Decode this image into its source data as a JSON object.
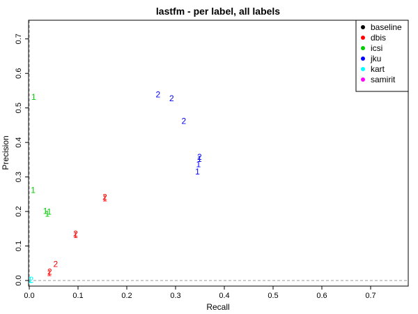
{
  "chart_data": {
    "type": "scatter",
    "title": "lastfm - per label, all labels",
    "xlabel": "Recall",
    "ylabel": "Precision",
    "xlim": [
      0,
      0.75
    ],
    "ylim": [
      0,
      0.75
    ],
    "x_ticks": [
      "0.0",
      "0.1",
      "0.2",
      "0.3",
      "0.4",
      "0.5",
      "0.6",
      "0.7"
    ],
    "y_ticks": [
      "0.0",
      "0.1",
      "0.2",
      "0.3",
      "0.4",
      "0.5",
      "0.6",
      "0.7"
    ],
    "legend": {
      "placement": "top-right"
    },
    "series": [
      {
        "name": "baseline",
        "color": "#000000",
        "points": []
      },
      {
        "name": "dbis",
        "color": "#ff0000",
        "points": [
          {
            "x": 0.042,
            "y": 0.025,
            "label": "2"
          },
          {
            "x": 0.041,
            "y": 0.021,
            "label": "1"
          },
          {
            "x": 0.054,
            "y": 0.048,
            "label": "2"
          },
          {
            "x": 0.095,
            "y": 0.135,
            "label": "2"
          },
          {
            "x": 0.095,
            "y": 0.131,
            "label": "1"
          },
          {
            "x": 0.155,
            "y": 0.242,
            "label": "2"
          },
          {
            "x": 0.155,
            "y": 0.238,
            "label": "1"
          }
        ]
      },
      {
        "name": "icsi",
        "color": "#00cc00",
        "points": [
          {
            "x": 0.009,
            "y": 0.532,
            "label": "1"
          },
          {
            "x": 0.008,
            "y": 0.262,
            "label": "1"
          },
          {
            "x": 0.033,
            "y": 0.201,
            "label": "1"
          },
          {
            "x": 0.041,
            "y": 0.199,
            "label": "1"
          },
          {
            "x": 0.037,
            "y": 0.193,
            "label": "1"
          }
        ]
      },
      {
        "name": "jku",
        "color": "#0000ff",
        "points": [
          {
            "x": 0.264,
            "y": 0.539,
            "label": "2"
          },
          {
            "x": 0.292,
            "y": 0.528,
            "label": "2"
          },
          {
            "x": 0.317,
            "y": 0.462,
            "label": "2"
          },
          {
            "x": 0.349,
            "y": 0.358,
            "label": "2"
          },
          {
            "x": 0.349,
            "y": 0.352,
            "label": "1"
          },
          {
            "x": 0.347,
            "y": 0.337,
            "label": "1"
          },
          {
            "x": 0.345,
            "y": 0.315,
            "label": "1"
          }
        ]
      },
      {
        "name": "kart",
        "color": "#00ffff",
        "points": [
          {
            "x": 0.004,
            "y": 0.002,
            "label": "2"
          },
          {
            "x": 0.002,
            "y": 0.001,
            "label": "1"
          }
        ]
      },
      {
        "name": "samirit",
        "color": "#ff00ff",
        "points": []
      }
    ]
  }
}
